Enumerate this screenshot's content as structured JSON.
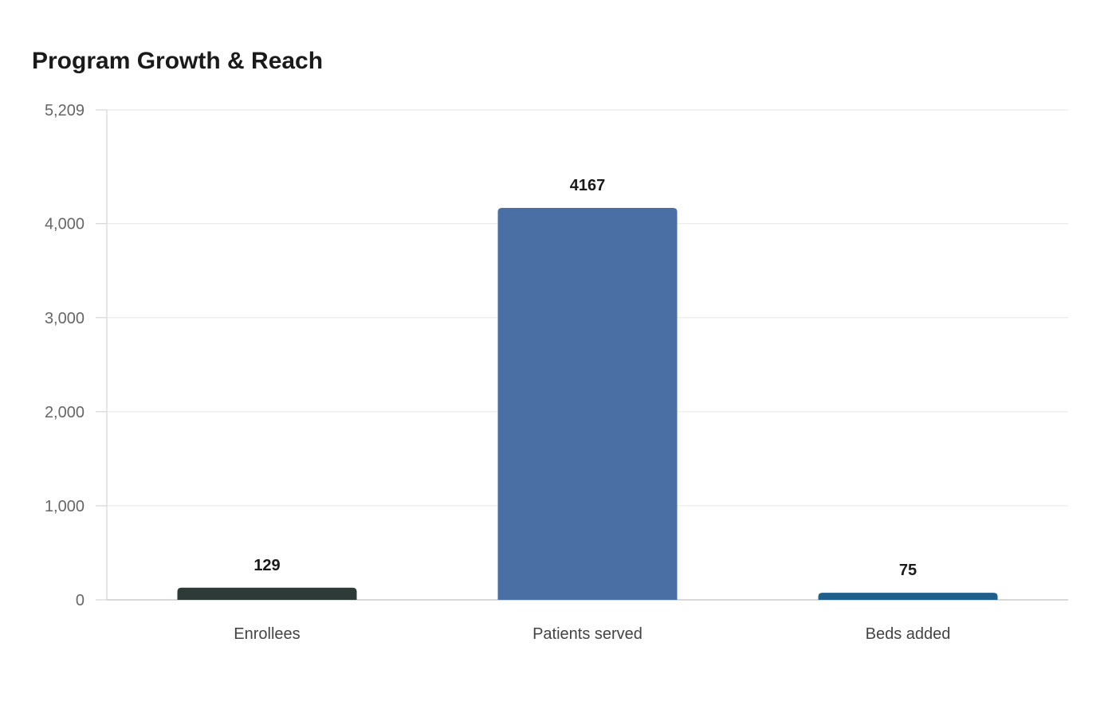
{
  "chart_data": {
    "type": "bar",
    "title": "Program Growth & Reach",
    "categories": [
      "Enrollees",
      "Patients served",
      "Beds added"
    ],
    "values": [
      129,
      4167,
      75
    ],
    "colors": [
      "#2d3a37",
      "#4a6fa5",
      "#1f5f8b"
    ],
    "data_labels": [
      "129",
      "4167",
      "75"
    ],
    "ylim": [
      0,
      5209
    ],
    "yticks": [
      0,
      1000,
      2000,
      3000,
      4000,
      5209
    ],
    "ytick_labels": [
      "0",
      "1,000",
      "2,000",
      "3,000",
      "4,000",
      "5,209"
    ],
    "grid": true,
    "xlabel": "",
    "ylabel": ""
  }
}
